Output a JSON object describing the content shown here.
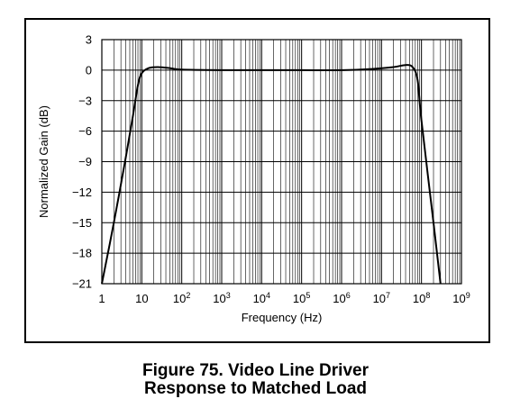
{
  "chart_data": {
    "type": "line",
    "title": "",
    "xlabel": "Frequency (Hz)",
    "ylabel": "Normalized Gain (dB)",
    "x_scale": "log",
    "xlim": [
      1,
      1000000000
    ],
    "ylim": [
      -21,
      3
    ],
    "grid": true,
    "legend": "none",
    "x_ticks": [
      1,
      10,
      100,
      1000,
      10000,
      100000,
      1000000,
      10000000,
      100000000,
      1000000000
    ],
    "x_tick_labels": [
      {
        "base": "1",
        "exp": ""
      },
      {
        "base": "10",
        "exp": ""
      },
      {
        "base": "10",
        "exp": "2"
      },
      {
        "base": "10",
        "exp": "3"
      },
      {
        "base": "10",
        "exp": "4"
      },
      {
        "base": "10",
        "exp": "5"
      },
      {
        "base": "10",
        "exp": "6"
      },
      {
        "base": "10",
        "exp": "7"
      },
      {
        "base": "10",
        "exp": "8"
      },
      {
        "base": "10",
        "exp": "9"
      }
    ],
    "y_ticks": [
      3,
      0,
      -3,
      -6,
      -9,
      -12,
      -15,
      -18,
      -21
    ],
    "y_tick_labels": [
      "3",
      "0",
      "−3",
      "−6",
      "−9",
      "−12",
      "−15",
      "−18",
      "−21"
    ],
    "series": [
      {
        "points": [
          [
            1,
            -21
          ],
          [
            2,
            -15
          ],
          [
            4,
            -8.5
          ],
          [
            6,
            -4.5
          ],
          [
            8,
            -1.5
          ],
          [
            10,
            -0.3
          ],
          [
            15,
            0.2
          ],
          [
            25,
            0.3
          ],
          [
            50,
            0.2
          ],
          [
            100,
            0.05
          ],
          [
            1000,
            0
          ],
          [
            10000,
            0
          ],
          [
            100000,
            0
          ],
          [
            1000000,
            0
          ],
          [
            5000000,
            0.1
          ],
          [
            20000000,
            0.3
          ],
          [
            40000000,
            0.5
          ],
          [
            60000000,
            0.3
          ],
          [
            80000000,
            -1
          ],
          [
            100000000,
            -5
          ],
          [
            200000000,
            -15
          ],
          [
            300000000,
            -21
          ]
        ]
      }
    ]
  },
  "caption": "Figure 75. Video Line Driver Response to Matched Load"
}
